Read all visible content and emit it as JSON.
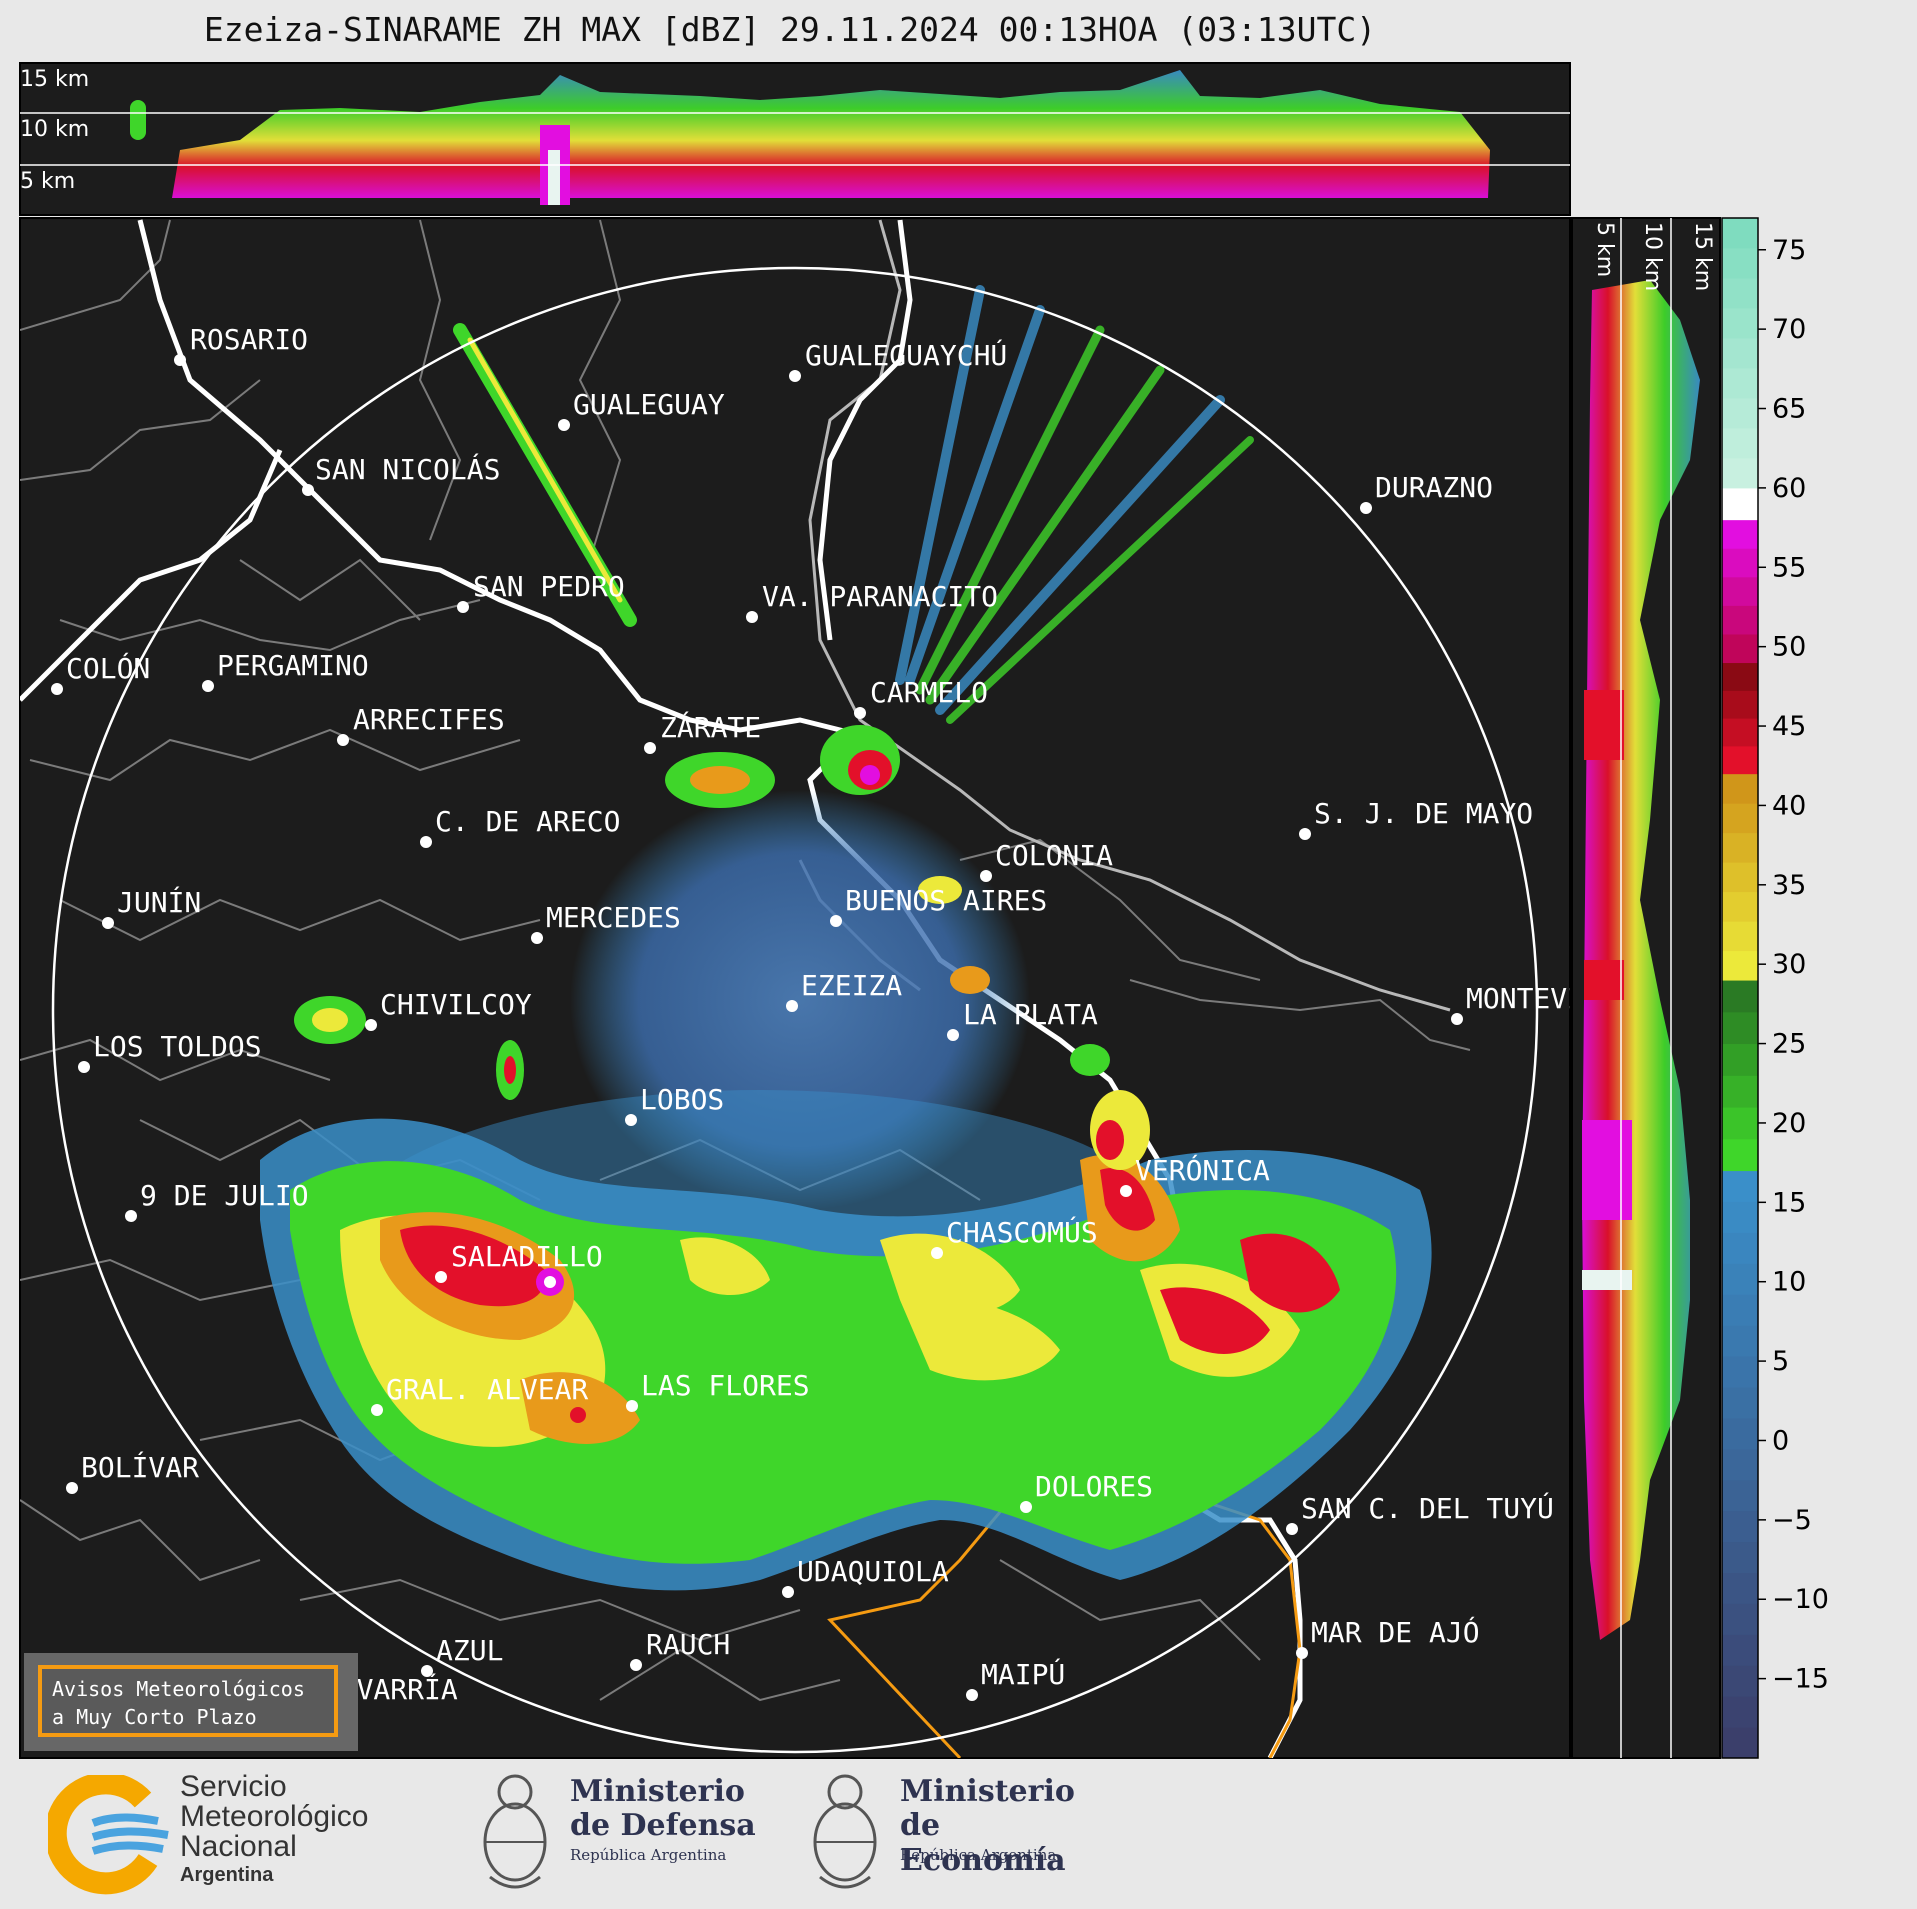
{
  "title": "Ezeiza-SINARAME ZH MAX [dBZ] 29.11.2024 00:13HOA (03:13UTC)",
  "top_panel": {
    "height_labels": [
      "15 km",
      "10 km",
      "5 km"
    ]
  },
  "side_panel": {
    "height_labels": [
      "5 km",
      "10 km",
      "15 km"
    ]
  },
  "colorbar": {
    "unit": "dBZ",
    "ticks": [
      "75",
      "70",
      "65",
      "60",
      "55",
      "50",
      "45",
      "40",
      "35",
      "30",
      "25",
      "20",
      "15",
      "10",
      "5",
      "0",
      "−5",
      "−10",
      "−15"
    ],
    "tick_values": [
      75,
      70,
      65,
      60,
      55,
      50,
      45,
      40,
      35,
      30,
      25,
      20,
      15,
      10,
      5,
      0,
      -5,
      -10,
      -15
    ],
    "range": [
      -20,
      77
    ],
    "colors": {
      "low": "#3b3f6b",
      "blue": "#3a8fc9",
      "green": "#3fd62a",
      "yellow": "#ece93a",
      "orange": "#e89a1b",
      "red": "#e3102a",
      "magenta": "#e20ee0",
      "white": "#ffffff",
      "teal": "#7fdcbf"
    }
  },
  "cities": [
    "ROSARIO",
    "GUALEGUAYCHÚ",
    "GUALEGUAY",
    "SAN NICOLÁS",
    "DURAZNO",
    "SAN PEDRO",
    "VA. PARANACITO",
    "COLÓN",
    "PERGAMINO",
    "CARMELO",
    "ARRECIFES",
    "ZÁRATE",
    "S. J. DE MAYO",
    "C. DE ARECO",
    "COLONIA",
    "JUNÍN",
    "BUENOS AIRES",
    "MERCEDES",
    "EZEIZA",
    "MONTEVIDEO",
    "CHIVILCOY",
    "LA PLATA",
    "LOS TOLDOS",
    "LOBOS",
    "VERÓNICA",
    "9 DE JULIO",
    "CHASCOMÚS",
    "SALADILLO",
    "GRAL. ALVEAR",
    "LAS FLORES",
    "BOLÍVAR",
    "DOLORES",
    "SAN C. DEL TUYÚ",
    "UDAQUIOLA",
    "MAR DE AJÓ",
    "RAUCH",
    "AZUL",
    "MAIPÚ",
    "OLAVARRÍA"
  ],
  "warning_box": {
    "line1": "Avisos Meteorológicos",
    "line2": "a Muy Corto Plazo"
  },
  "logos": {
    "smn": [
      "Servicio",
      "Meteorológico",
      "Nacional",
      "Argentina"
    ],
    "defensa": [
      "Ministerio",
      "de Defensa",
      "República Argentina"
    ],
    "economia": [
      "Ministerio",
      "de Economía",
      "República Argentina"
    ]
  }
}
